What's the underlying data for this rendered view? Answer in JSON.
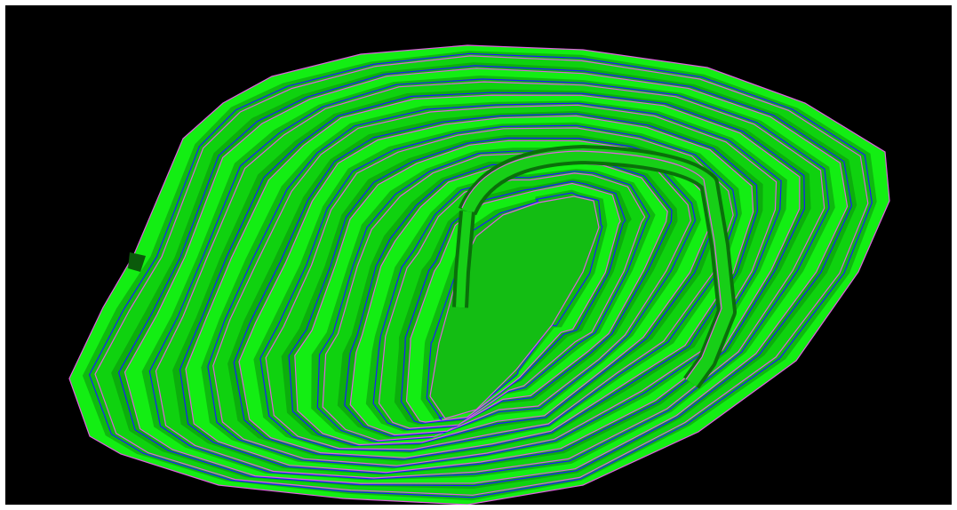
{
  "scene": {
    "subject": "open-pit-mine-3d-model",
    "background_color": "#000000",
    "frame_color": "#ffffff",
    "colors": {
      "bench_floor_light": "#13ee13",
      "bench_floor_mid": "#0fd20f",
      "bench_face_dark": "#0b8f0b",
      "pit_bottom": "#13bd13",
      "toe_line": "#1a1aff",
      "crest_line": "#e060e0",
      "haul_road": "#17cf17",
      "haul_road_edge": "#0a6f0a"
    },
    "bench_count": 13
  }
}
